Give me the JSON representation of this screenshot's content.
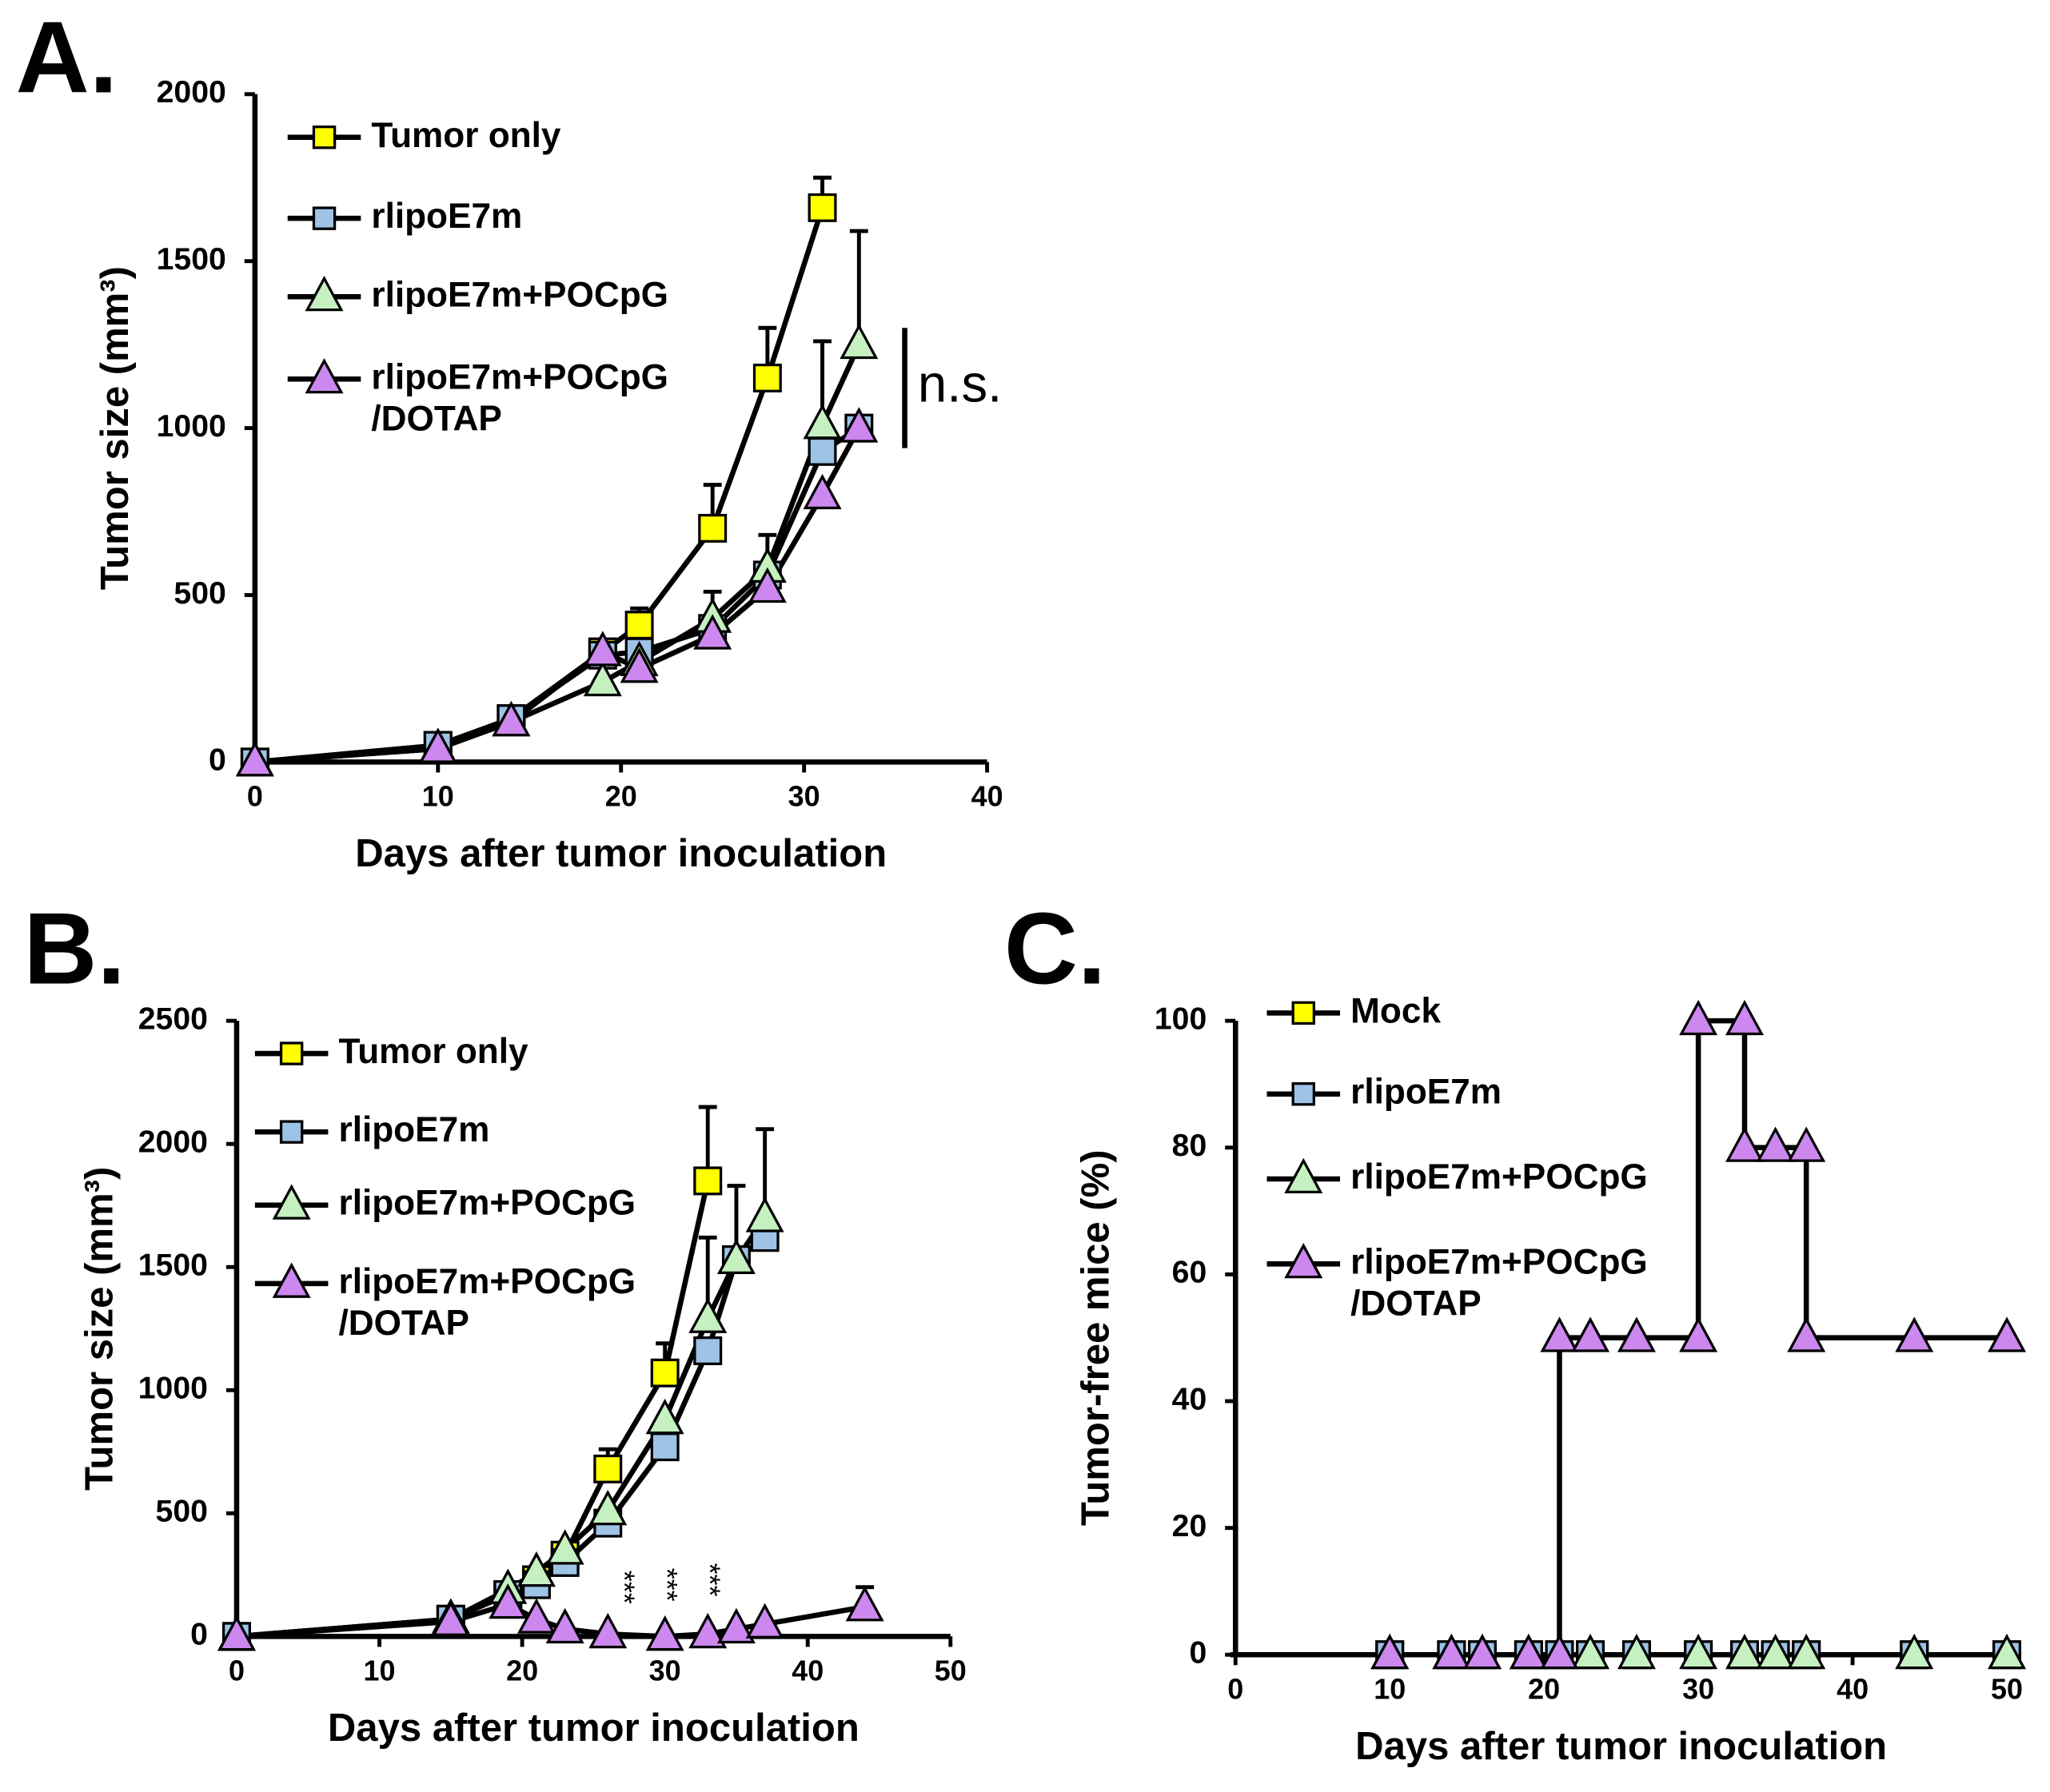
{
  "chart_data": [
    {
      "type": "line",
      "panel": "A.",
      "xlabel": "Days after tumor inoculation",
      "ylabel": "Tumor size (mm³)",
      "xlim": [
        0,
        40
      ],
      "xticks": [
        0,
        10,
        20,
        30,
        40
      ],
      "ylim": [
        0,
        2000
      ],
      "yticks": [
        0,
        500,
        1000,
        1500,
        2000
      ],
      "series": [
        {
          "name": "Tumor only",
          "color": "#ffff00",
          "marker": "square",
          "x": [
            0,
            10,
            14,
            19,
            21,
            25,
            28,
            31
          ],
          "values": [
            0,
            50,
            130,
            330,
            410,
            700,
            1150,
            1660
          ],
          "errors": [
            null,
            null,
            null,
            null,
            50,
            130,
            150,
            90
          ]
        },
        {
          "name": "rlipoE7m",
          "color": "#9dc3e6",
          "marker": "square",
          "x": [
            0,
            10,
            14,
            19,
            21,
            25,
            28,
            31,
            33
          ],
          "values": [
            0,
            50,
            130,
            320,
            330,
            400,
            560,
            930,
            1000
          ],
          "errors": [
            null,
            null,
            null,
            null,
            null,
            null,
            null,
            null,
            null
          ]
        },
        {
          "name": "rlipoE7m+POCpG",
          "color": "#c5f0c0",
          "marker": "triangle",
          "x": [
            0,
            10,
            14,
            19,
            21,
            25,
            28,
            31,
            33
          ],
          "values": [
            0,
            40,
            120,
            240,
            300,
            430,
            580,
            1010,
            1250
          ],
          "errors": [
            null,
            null,
            null,
            null,
            null,
            80,
            100,
            250,
            340
          ]
        },
        {
          "name": "rlipoE7m+POCpG\n/DOTAP",
          "color": "#cc88ee",
          "marker": "triangle",
          "x": [
            0,
            10,
            14,
            19,
            21,
            25,
            28,
            31,
            33
          ],
          "values": [
            0,
            40,
            120,
            330,
            280,
            380,
            520,
            800,
            1000
          ],
          "errors": [
            null,
            null,
            null,
            null,
            null,
            null,
            null,
            null,
            null
          ]
        }
      ],
      "annotations": [
        {
          "text": "n.s.",
          "x": 35.5,
          "y": 1120
        }
      ]
    },
    {
      "type": "line",
      "panel": "B.",
      "xlabel": "Days after tumor inoculation",
      "ylabel": "Tumor size (mm³)",
      "xlim": [
        0,
        50
      ],
      "xticks": [
        0,
        10,
        20,
        30,
        40,
        50
      ],
      "ylim": [
        0,
        2500
      ],
      "yticks": [
        0,
        500,
        1000,
        1500,
        2000,
        2500
      ],
      "series": [
        {
          "name": "Tumor only",
          "color": "#ffff00",
          "marker": "square",
          "x": [
            0,
            15,
            19,
            21,
            23,
            26,
            30,
            33
          ],
          "values": [
            0,
            70,
            170,
            230,
            330,
            680,
            1070,
            1850
          ],
          "errors": [
            null,
            null,
            null,
            null,
            null,
            80,
            120,
            300
          ]
        },
        {
          "name": "rlipoE7m",
          "color": "#9dc3e6",
          "marker": "square",
          "x": [
            0,
            15,
            19,
            21,
            23,
            26,
            30,
            33,
            35,
            37
          ],
          "values": [
            0,
            70,
            170,
            210,
            300,
            460,
            770,
            1160,
            1530,
            1620
          ],
          "errors": [
            null,
            null,
            null,
            null,
            null,
            null,
            null,
            null,
            null,
            null
          ]
        },
        {
          "name": "rlipoE7m+POCpG",
          "color": "#c5f0c0",
          "marker": "triangle",
          "x": [
            0,
            15,
            19,
            21,
            23,
            26,
            30,
            33,
            35,
            37
          ],
          "values": [
            0,
            70,
            190,
            260,
            350,
            510,
            880,
            1290,
            1530,
            1700
          ],
          "errors": [
            null,
            null,
            null,
            null,
            null,
            null,
            null,
            330,
            300,
            360
          ]
        },
        {
          "name": "rlipoE7m+POCpG\n/DOTAP",
          "color": "#cc88ee",
          "marker": "triangle",
          "x": [
            0,
            15,
            19,
            21,
            23,
            26,
            30,
            33,
            35,
            37,
            44
          ],
          "values": [
            0,
            60,
            130,
            70,
            30,
            10,
            0,
            10,
            30,
            50,
            120
          ],
          "errors": [
            null,
            null,
            null,
            null,
            null,
            null,
            null,
            null,
            null,
            null,
            80
          ]
        }
      ],
      "annotations": [
        {
          "text": "***",
          "x": 27,
          "y": 200
        },
        {
          "text": "***",
          "x": 30,
          "y": 210
        },
        {
          "text": "***",
          "x": 33,
          "y": 230
        }
      ]
    },
    {
      "type": "step",
      "panel": "C.",
      "xlabel": "Days after tumor inoculation",
      "ylabel": "Tumor-free mice (%)",
      "xlim": [
        0,
        50
      ],
      "xticks": [
        0,
        10,
        20,
        30,
        40,
        50
      ],
      "ylim": [
        0,
        100
      ],
      "yticks": [
        0,
        20,
        40,
        60,
        80,
        100
      ],
      "series": [
        {
          "name": "Mock",
          "color": "#ffff00",
          "marker": "square",
          "x": [
            10,
            14,
            16,
            19,
            21,
            23,
            26,
            30,
            33,
            35,
            37,
            44,
            50
          ],
          "values": [
            0,
            0,
            0,
            0,
            0,
            0,
            0,
            0,
            0,
            0,
            0,
            0,
            0
          ]
        },
        {
          "name": "rlipoE7m",
          "color": "#9dc3e6",
          "marker": "square",
          "x": [
            10,
            14,
            16,
            19,
            21,
            23,
            26,
            30,
            33,
            35,
            37,
            44,
            50
          ],
          "values": [
            0,
            0,
            0,
            0,
            0,
            0,
            0,
            0,
            0,
            0,
            0,
            0,
            0
          ]
        },
        {
          "name": "rlipoE7m+POCpG",
          "color": "#c5f0c0",
          "marker": "triangle",
          "x": [
            10,
            14,
            16,
            19,
            21,
            23,
            26,
            30,
            33,
            35,
            37,
            44,
            50
          ],
          "values": [
            0,
            0,
            0,
            0,
            0,
            0,
            0,
            0,
            0,
            0,
            0,
            0,
            0
          ]
        },
        {
          "name": "rlipoE7m+POCpG\n/DOTAP",
          "color": "#cc88ee",
          "marker": "triangle",
          "x": [
            10,
            14,
            16,
            19,
            21,
            21,
            23,
            26,
            30,
            30,
            33,
            33,
            35,
            37,
            37,
            44,
            50
          ],
          "values": [
            0,
            0,
            0,
            0,
            0,
            50,
            50,
            50,
            50,
            100,
            100,
            80,
            80,
            80,
            50,
            50,
            50
          ]
        }
      ]
    }
  ]
}
